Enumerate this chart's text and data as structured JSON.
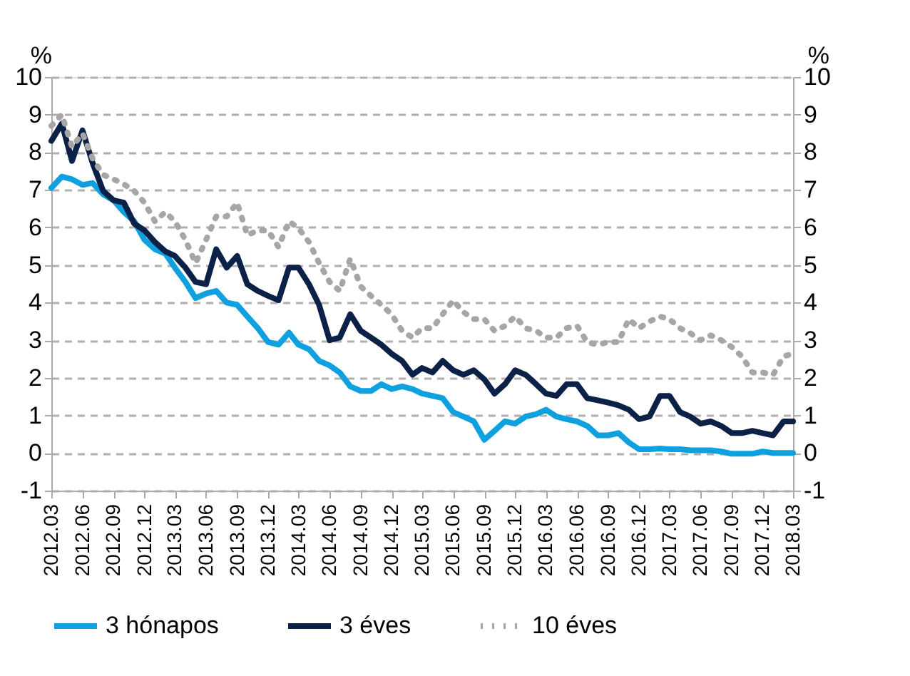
{
  "chart_data": {
    "type": "line",
    "ylabel": "%",
    "y2label": "%",
    "x": [
      "2012-03",
      "2012-04",
      "2012-05",
      "2012-06",
      "2012-07",
      "2012-08",
      "2012-09",
      "2012-10",
      "2012-11",
      "2012-12",
      "2013-01",
      "2013-02",
      "2013-03",
      "2013-04",
      "2013-05",
      "2013-06",
      "2013-07",
      "2013-08",
      "2013-09",
      "2013-10",
      "2013-11",
      "2013-12",
      "2014-01",
      "2014-02",
      "2014-03",
      "2014-04",
      "2014-05",
      "2014-06",
      "2014-07",
      "2014-08",
      "2014-09",
      "2014-10",
      "2014-11",
      "2014-12",
      "2015-01",
      "2015-02",
      "2015-03",
      "2015-04",
      "2015-05",
      "2015-06",
      "2015-07",
      "2015-08",
      "2015-09",
      "2015-10",
      "2015-11",
      "2015-12",
      "2016-01",
      "2016-02",
      "2016-03",
      "2016-04",
      "2016-05",
      "2016-06",
      "2016-07",
      "2016-08",
      "2016-09",
      "2016-10",
      "2016-11",
      "2016-12",
      "2017-01",
      "2017-02",
      "2017-03",
      "2017-04",
      "2017-05",
      "2017-06",
      "2017-07",
      "2017-08",
      "2017-09",
      "2017-10",
      "2017-11",
      "2017-12",
      "2018-01",
      "2018-02",
      "2018-03"
    ],
    "series": [
      {
        "name": "3 hónapos",
        "color": "#0fa0e0",
        "line_style": "solid",
        "values": [
          7.05,
          7.35,
          7.28,
          7.13,
          7.18,
          6.88,
          6.72,
          6.41,
          6.16,
          5.67,
          5.42,
          5.3,
          4.93,
          4.55,
          4.12,
          4.24,
          4.31,
          4.0,
          3.94,
          3.63,
          3.32,
          2.95,
          2.88,
          3.2,
          2.88,
          2.76,
          2.45,
          2.33,
          2.14,
          1.77,
          1.65,
          1.65,
          1.83,
          1.7,
          1.77,
          1.7,
          1.58,
          1.52,
          1.46,
          1.09,
          0.97,
          0.84,
          0.35,
          0.59,
          0.84,
          0.78,
          0.97,
          1.03,
          1.15,
          0.97,
          0.9,
          0.84,
          0.72,
          0.47,
          0.47,
          0.53,
          0.28,
          0.1,
          0.1,
          0.12,
          0.1,
          0.1,
          0.07,
          0.07,
          0.07,
          0.04,
          -0.02,
          -0.02,
          -0.02,
          0.04,
          0,
          0,
          0
        ]
      },
      {
        "name": "3 éves",
        "color": "#0b2148",
        "line_style": "solid",
        "values": [
          8.3,
          8.76,
          7.77,
          8.58,
          7.71,
          6.97,
          6.72,
          6.66,
          6.1,
          5.92,
          5.61,
          5.36,
          5.24,
          4.93,
          4.55,
          4.49,
          5.42,
          4.93,
          5.24,
          4.49,
          4.31,
          4.18,
          4.06,
          4.93,
          4.93,
          4.49,
          3.94,
          3.0,
          3.07,
          3.69,
          3.25,
          3.07,
          2.88,
          2.64,
          2.45,
          2.08,
          2.26,
          2.14,
          2.45,
          2.2,
          2.08,
          2.2,
          1.96,
          1.58,
          1.83,
          2.2,
          2.08,
          1.83,
          1.58,
          1.52,
          1.83,
          1.83,
          1.46,
          1.4,
          1.34,
          1.27,
          1.15,
          0.9,
          0.97,
          1.52,
          1.52,
          1.09,
          0.97,
          0.78,
          0.84,
          0.72,
          0.53,
          0.53,
          0.59,
          0.53,
          0.47,
          0.84,
          0.84
        ]
      },
      {
        "name": "10 éves",
        "color": "#a6a6a6",
        "line_style": "dotted",
        "values": [
          8.7,
          9.0,
          8.14,
          8.5,
          7.83,
          7.4,
          7.28,
          7.15,
          6.97,
          6.66,
          6.16,
          6.41,
          6.16,
          5.67,
          5.05,
          5.67,
          6.29,
          6.29,
          6.66,
          5.79,
          5.92,
          5.92,
          5.48,
          6.16,
          5.98,
          5.61,
          5.05,
          4.55,
          4.31,
          5.17,
          4.43,
          4.18,
          3.94,
          3.69,
          3.25,
          3.07,
          3.32,
          3.32,
          3.69,
          4.06,
          3.75,
          3.56,
          3.56,
          3.25,
          3.38,
          3.63,
          3.32,
          3.25,
          3.07,
          3.07,
          3.32,
          3.38,
          2.95,
          2.88,
          2.95,
          2.95,
          3.56,
          3.32,
          3.5,
          3.63,
          3.56,
          3.32,
          3.19,
          3.0,
          3.13,
          3.0,
          2.82,
          2.57,
          2.14,
          2.14,
          2.08,
          2.57,
          2.64
        ]
      }
    ],
    "xlim": [
      "2012-03",
      "2018-03"
    ],
    "xticks": [
      {
        "value": "2012-03",
        "label": "2012.03"
      },
      {
        "value": "2012-06",
        "label": "2012.06"
      },
      {
        "value": "2012-09",
        "label": "2012.09"
      },
      {
        "value": "2012-12",
        "label": "2012.12"
      },
      {
        "value": "2013-03",
        "label": "2013.03"
      },
      {
        "value": "2013-06",
        "label": "2013.06"
      },
      {
        "value": "2013-09",
        "label": "2013.09"
      },
      {
        "value": "2013-12",
        "label": "2013.12"
      },
      {
        "value": "2014-03",
        "label": "2014.03"
      },
      {
        "value": "2014-06",
        "label": "2014.06"
      },
      {
        "value": "2014-09",
        "label": "2014.09"
      },
      {
        "value": "2014-12",
        "label": "2014.12"
      },
      {
        "value": "2015-03",
        "label": "2015.03"
      },
      {
        "value": "2015-06",
        "label": "2015.06"
      },
      {
        "value": "2015-09",
        "label": "2015.09"
      },
      {
        "value": "2015-12",
        "label": "2015.12"
      },
      {
        "value": "2016-03",
        "label": "2016.03"
      },
      {
        "value": "2016-06",
        "label": "2016.06"
      },
      {
        "value": "2016-09",
        "label": "2016.09"
      },
      {
        "value": "2016-12",
        "label": "2016.12"
      },
      {
        "value": "2017-03",
        "label": "2017.03"
      },
      {
        "value": "2017-06",
        "label": "2017.06"
      },
      {
        "value": "2017-09",
        "label": "2017.09"
      },
      {
        "value": "2017-12",
        "label": "2017.12"
      },
      {
        "value": "2018-03",
        "label": "2018.03"
      }
    ],
    "ylim": [
      -1,
      10
    ],
    "yticks": [
      -1,
      0,
      1,
      2,
      3,
      4,
      5,
      6,
      7,
      8,
      9,
      10
    ],
    "y2lim": [
      -1,
      10
    ],
    "y2ticks": [
      -1,
      0,
      1,
      2,
      3,
      4,
      5,
      6,
      7,
      8,
      9,
      10
    ],
    "grid": "y",
    "legend": "bottom",
    "marker": "none"
  }
}
